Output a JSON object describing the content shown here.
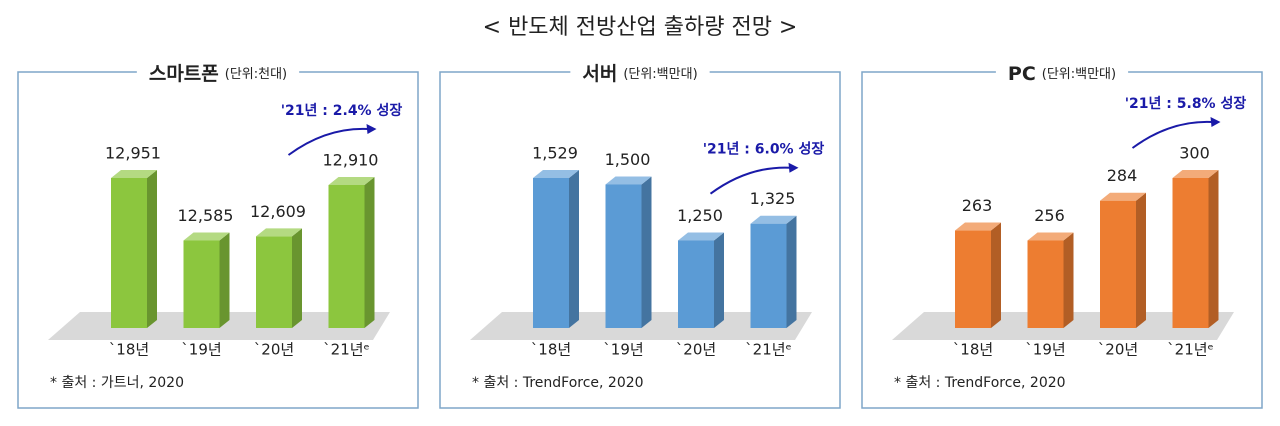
{
  "title": "< 반도체 전방산업 출하량 전망 >",
  "chart_data": [
    {
      "type": "bar",
      "title": "스마트폰",
      "unit": "(단위:천대)",
      "categories": [
        "`18년",
        "`19년",
        "`20년",
        "`21년ᵉ"
      ],
      "values": [
        12951,
        12585,
        12609,
        12910
      ],
      "value_labels": [
        "12,951",
        "12,585",
        "12,609",
        "12,910"
      ],
      "color": "#8cc63e",
      "annotation": "'21년 : 2.4% 성장",
      "source": "* 출처 : 가트너, 2020"
    },
    {
      "type": "bar",
      "title": "서버",
      "unit": "(단위:백만대)",
      "categories": [
        "`18년",
        "`19년",
        "`20년",
        "`21년ᵉ"
      ],
      "values": [
        1529,
        1500,
        1250,
        1325
      ],
      "value_labels": [
        "1,529",
        "1,500",
        "1,250",
        "1,325"
      ],
      "color": "#5b9bd5",
      "annotation": "'21년 : 6.0% 성장",
      "source": "* 출처 : TrendForce, 2020"
    },
    {
      "type": "bar",
      "title": "PC",
      "unit": "(단위:백만대)",
      "categories": [
        "`18년",
        "`19년",
        "`20년",
        "`21년ᵉ"
      ],
      "values": [
        263,
        256,
        284,
        300
      ],
      "color": "#ed7d31",
      "annotation": "'21년 : 5.8% 성장",
      "source": "* 출처 : TrendForce, 2020"
    }
  ]
}
